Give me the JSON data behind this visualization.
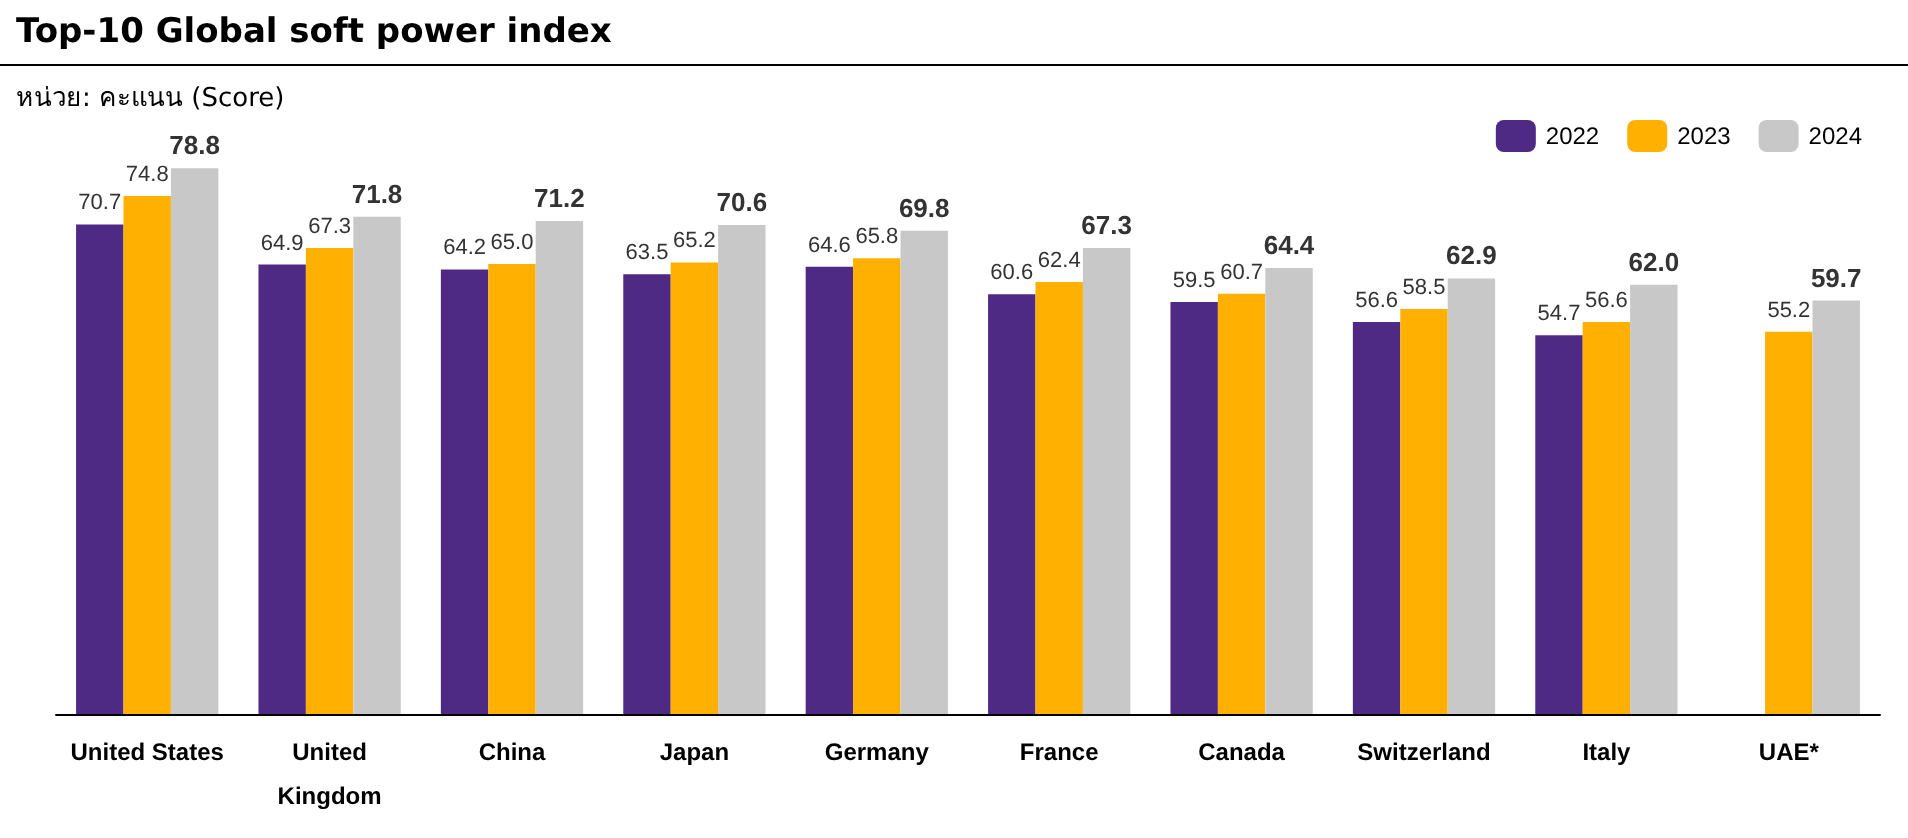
{
  "chart_data": {
    "type": "bar",
    "title": "Top-10 Global soft power index",
    "subtitle": "หน่วย: คะแนน (Score)",
    "categories": [
      "United States",
      "United\nKingdom",
      "China",
      "Japan",
      "Germany",
      "France",
      "Canada",
      "Switzerland",
      "Italy",
      "UAE*"
    ],
    "series": [
      {
        "name": "2022",
        "color": "#4e2a84",
        "values": [
          70.7,
          64.9,
          64.2,
          63.5,
          64.6,
          60.6,
          59.5,
          56.6,
          54.7,
          null
        ],
        "value_labels": [
          "70.7",
          "64.9",
          "64.2",
          "63.5",
          "64.6",
          "60.6",
          "59.5",
          "56.6",
          "54.7",
          null
        ]
      },
      {
        "name": "2023",
        "color": "#ffb000",
        "values": [
          74.8,
          67.3,
          65.0,
          65.2,
          65.8,
          62.4,
          60.7,
          58.5,
          56.6,
          55.2
        ],
        "value_labels": [
          "74.8",
          "67.3",
          "65.0",
          "65.2",
          "65.8",
          "62.4",
          "60.7",
          "58.5",
          "56.6",
          "55.2"
        ]
      },
      {
        "name": "2024",
        "color": "#c8c8c8",
        "values": [
          78.8,
          71.8,
          71.2,
          70.6,
          69.8,
          67.3,
          64.4,
          62.9,
          62.0,
          59.7
        ],
        "value_labels": [
          "78.8",
          "71.8",
          "71.2",
          "70.6",
          "69.8",
          "67.3",
          "64.4",
          "62.9",
          "62.0",
          "59.7"
        ]
      }
    ],
    "legend": "top right"
  }
}
